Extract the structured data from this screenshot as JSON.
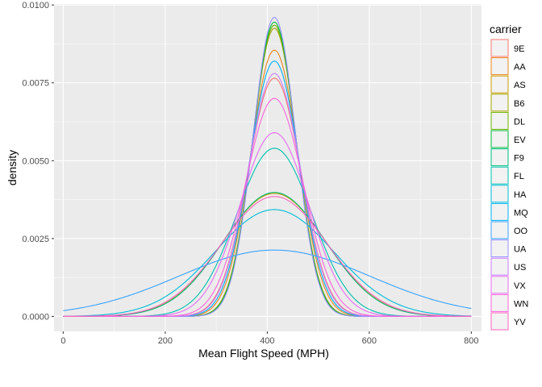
{
  "chart_data": {
    "type": "line",
    "xlabel": "Mean Flight Speed (MPH)",
    "ylabel": "density",
    "xlim": [
      -18,
      820
    ],
    "ylim": [
      -0.00048,
      0.01003
    ],
    "x_ticks": [
      0,
      200,
      400,
      600,
      800
    ],
    "x_tick_labels": [
      "0",
      "200",
      "400",
      "600",
      "800"
    ],
    "y_ticks": [
      0.0,
      0.0025,
      0.005,
      0.0075,
      0.01
    ],
    "y_tick_labels": [
      "0.0000",
      "0.0025",
      "0.0050",
      "0.0075",
      "0.0100"
    ],
    "grid": true,
    "legend_title": "carrier",
    "legend_position": "right",
    "curve_center": 414,
    "x_range": [
      0,
      800
    ],
    "series": [
      {
        "name": "9E",
        "color": "#F8766D",
        "peak": 0.00765,
        "sd": 52
      },
      {
        "name": "AA",
        "color": "#E7861B",
        "peak": 0.00855,
        "sd": 46.7
      },
      {
        "name": "AS",
        "color": "#C99800",
        "peak": 0.00395,
        "sd": 101
      },
      {
        "name": "B6",
        "color": "#A3A500",
        "peak": 0.00925,
        "sd": 43.1
      },
      {
        "name": "DL",
        "color": "#6BB100",
        "peak": 0.00935,
        "sd": 42.7
      },
      {
        "name": "EV",
        "color": "#00BA38",
        "peak": 0.00945,
        "sd": 42.2
      },
      {
        "name": "F9",
        "color": "#00BF7D",
        "peak": 0.00398,
        "sd": 100.2
      },
      {
        "name": "FL",
        "color": "#00C0AF",
        "peak": 0.0054,
        "sd": 73.9
      },
      {
        "name": "HA",
        "color": "#00BCD8",
        "peak": 0.00343,
        "sd": 116.3
      },
      {
        "name": "MQ",
        "color": "#00B0F6",
        "peak": 0.0082,
        "sd": 48.7
      },
      {
        "name": "OO",
        "color": "#35A2FF",
        "peak": 0.00213,
        "sd": 187.3
      },
      {
        "name": "UA",
        "color": "#9590FF",
        "peak": 0.0096,
        "sd": 41.6
      },
      {
        "name": "US",
        "color": "#C77CFF",
        "peak": 0.0078,
        "sd": 51.1
      },
      {
        "name": "VX",
        "color": "#E76BF3",
        "peak": 0.0059,
        "sd": 67.6
      },
      {
        "name": "WN",
        "color": "#FA62DB",
        "peak": 0.007,
        "sd": 57
      },
      {
        "name": "YV",
        "color": "#FF62BC",
        "peak": 0.00385,
        "sd": 103.6
      }
    ]
  }
}
